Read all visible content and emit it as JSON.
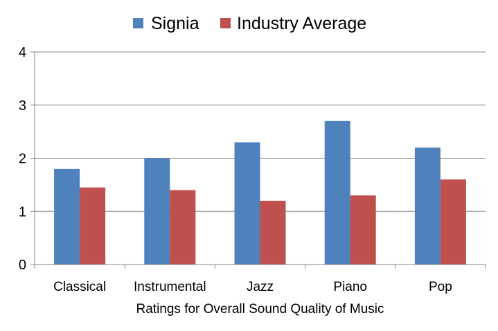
{
  "chart_data": {
    "type": "bar",
    "categories": [
      "Classical",
      "Instrumental",
      "Jazz",
      "Piano",
      "Pop"
    ],
    "series": [
      {
        "name": "Signia",
        "color": "#4F81BD",
        "values": [
          1.8,
          2.0,
          2.3,
          2.7,
          2.2
        ]
      },
      {
        "name": "Industry Average",
        "color": "#C0504D",
        "values": [
          1.45,
          1.4,
          1.2,
          1.3,
          1.6
        ]
      }
    ],
    "xlabel": "Ratings for Overall Sound Quality of Music",
    "ylabel": "",
    "ylim": [
      0,
      4
    ],
    "yticks": [
      0,
      1,
      2,
      3,
      4
    ],
    "grid": true,
    "legend_position": "top"
  }
}
